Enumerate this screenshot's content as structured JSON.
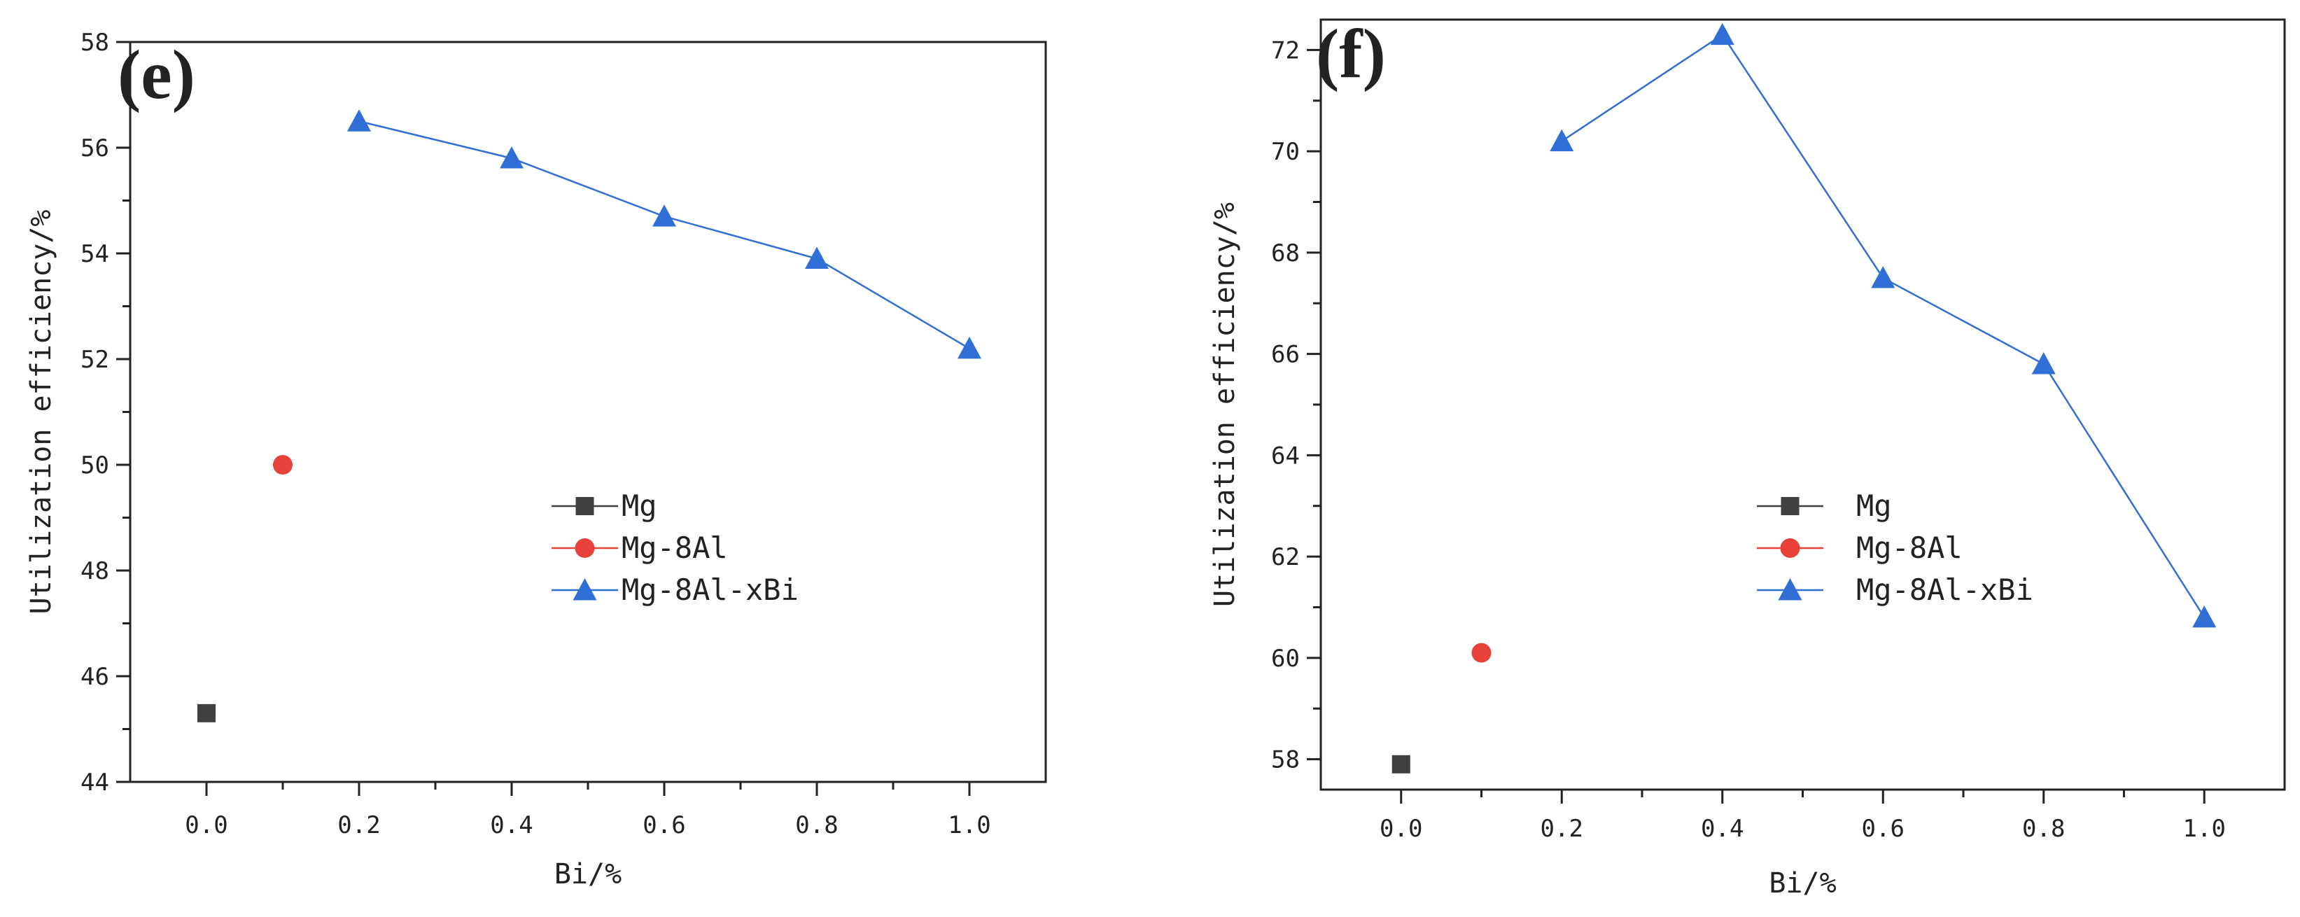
{
  "chart_data": [
    {
      "type": "line",
      "panel_label": "(e)",
      "xlabel": "Bi/%",
      "ylabel": "Utilization efficiency/%",
      "xlim": [
        -0.1,
        1.1
      ],
      "ylim": [
        44,
        58
      ],
      "x_ticks": [
        0.0,
        0.2,
        0.4,
        0.6,
        0.8,
        1.0
      ],
      "x_tick_labels": [
        "0.0",
        "0.2",
        "0.4",
        "0.6",
        "0.8",
        "1.0"
      ],
      "y_ticks": [
        44,
        46,
        48,
        50,
        52,
        54,
        56,
        58
      ],
      "y_tick_labels": [
        "44",
        "46",
        "48",
        "50",
        "52",
        "54",
        "56",
        "58"
      ],
      "legend_position": "center-right",
      "series": [
        {
          "name": "Mg",
          "marker": "square",
          "color": "#404040",
          "x": [
            0.0
          ],
          "y": [
            45.3
          ]
        },
        {
          "name": "Mg-8Al",
          "marker": "circle",
          "color": "#e8413a",
          "x": [
            0.1
          ],
          "y": [
            50.0
          ]
        },
        {
          "name": "Mg-8Al-xBi",
          "marker": "triangle",
          "color": "#2f6fd6",
          "x": [
            0.2,
            0.4,
            0.6,
            0.8,
            1.0
          ],
          "y": [
            56.5,
            55.8,
            54.7,
            53.9,
            52.2
          ]
        }
      ]
    },
    {
      "type": "line",
      "panel_label": "(f)",
      "xlabel": "Bi/%",
      "ylabel": "Utilization efficiency/%",
      "xlim": [
        -0.1,
        1.1
      ],
      "ylim": [
        57.4,
        72.6
      ],
      "x_ticks": [
        0.0,
        0.2,
        0.4,
        0.6,
        0.8,
        1.0
      ],
      "x_tick_labels": [
        "0.0",
        "0.2",
        "0.4",
        "0.6",
        "0.8",
        "1.0"
      ],
      "y_ticks": [
        58,
        60,
        62,
        64,
        66,
        68,
        70,
        72
      ],
      "y_tick_labels": [
        "58",
        "60",
        "62",
        "64",
        "66",
        "68",
        "70",
        "72"
      ],
      "legend_position": "center-left",
      "series": [
        {
          "name": "Mg",
          "marker": "square",
          "color": "#404040",
          "x": [
            0.0
          ],
          "y": [
            57.9
          ]
        },
        {
          "name": "Mg-8Al",
          "marker": "circle",
          "color": "#e8413a",
          "x": [
            0.1
          ],
          "y": [
            60.1
          ]
        },
        {
          "name": "Mg-8Al-xBi",
          "marker": "triangle",
          "color": "#2f6fd6",
          "x": [
            0.2,
            0.4,
            0.6,
            0.8,
            1.0
          ],
          "y": [
            70.2,
            72.3,
            67.5,
            65.8,
            60.8
          ]
        }
      ]
    }
  ]
}
